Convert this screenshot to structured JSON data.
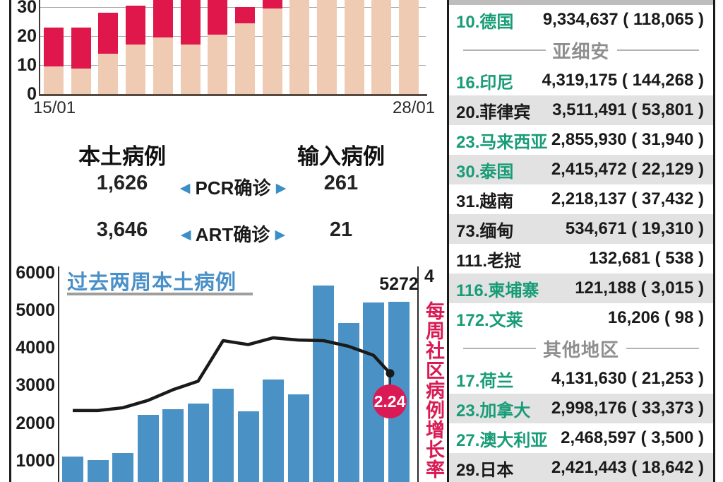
{
  "colors": {
    "daily_pink": "#f0cbb4",
    "daily_red": "#e0174a",
    "weekly_blue": "#4a92c6",
    "crimson": "#d91a55",
    "table_green": "#189c77",
    "shaded_row": "#e2e2e2"
  },
  "summary": {
    "local_title": "本土病例",
    "imported_title": "输入病例",
    "rows": [
      {
        "local": "1,626",
        "left_arrow": "◀",
        "label": "PCR确诊",
        "right_arrow": "▶",
        "imported": "261"
      },
      {
        "local": "3,646",
        "left_arrow": "◀",
        "label": "ART确诊",
        "right_arrow": "▶",
        "imported": "21"
      }
    ]
  },
  "chart_data": [
    {
      "type": "bar",
      "stacked": true,
      "note": "Daily cases stacked bars (top of chart cropped in source image; values above ~32 are cut off, clipped segments stored as 34)",
      "n_bars": 14,
      "x_first_label": "15/01",
      "x_last_label": "28/01",
      "yticks": [
        0,
        10,
        20,
        30
      ],
      "ylim_visible": [
        0,
        32.4
      ],
      "series": [
        {
          "name": "pink-segment",
          "color": "#f0cbb4",
          "top_values": [
            9.5,
            8.8,
            14,
            17,
            19.5,
            17,
            20.5,
            24.5,
            29.5,
            34,
            34,
            34,
            34,
            34
          ]
        },
        {
          "name": "red-segment",
          "color": "#e0174a",
          "top_values": [
            23,
            23,
            28,
            30.5,
            34,
            34,
            34,
            30,
            34,
            34,
            34,
            34,
            34,
            34
          ]
        }
      ]
    },
    {
      "type": "bar+line",
      "title": "过去两周本土病例",
      "n_bars": 14,
      "bar_color": "#4a92c6",
      "bar_values": [
        1150,
        1050,
        1250,
        2250,
        2400,
        2550,
        2950,
        2350,
        3200,
        2800,
        5700,
        4700,
        5250,
        5272
      ],
      "bar_label_last": "5272",
      "left_yticks": [
        1000,
        2000,
        3000,
        4000,
        5000,
        6000
      ],
      "left_ylim": [
        0,
        6000
      ],
      "right_axis_top_tick": "4",
      "right_ylim": [
        0,
        4
      ],
      "right_axis_label": "每周社区病例增长率",
      "line_color": "#1a1a1a",
      "line_values": [
        1.58,
        1.58,
        1.63,
        1.76,
        1.95,
        2.1,
        2.82,
        2.75,
        2.87,
        2.83,
        2.82,
        2.72,
        2.56,
        2.24
      ],
      "line_end_label": "2.24"
    }
  ],
  "ranking": {
    "items": [
      {
        "type": "country",
        "name": "10.德国",
        "value": "9,334,637 ( 118,065 )",
        "green": true,
        "shaded": false
      },
      {
        "type": "section",
        "label": "亚细安"
      },
      {
        "type": "country",
        "name": "16.印尼",
        "value": "4,319,175 ( 144,268 )",
        "green": true,
        "shaded": false
      },
      {
        "type": "country",
        "name": "20.菲律宾",
        "value": "3,511,491 ( 53,801 )",
        "green": false,
        "shaded": true
      },
      {
        "type": "country",
        "name": "23.马来西亚",
        "value": "2,855,930 ( 31,940 )",
        "green": true,
        "shaded": false
      },
      {
        "type": "country",
        "name": "30.泰国",
        "value": "2,415,472 ( 22,129 )",
        "green": true,
        "shaded": true
      },
      {
        "type": "country",
        "name": "31.越南",
        "value": "2,218,137 ( 37,432 )",
        "green": false,
        "shaded": false
      },
      {
        "type": "country",
        "name": "73.缅甸",
        "value": "534,671 ( 19,310 )",
        "green": false,
        "shaded": true
      },
      {
        "type": "country",
        "name": "111.老挝",
        "value": "132,681 ( 538 )",
        "green": false,
        "shaded": false
      },
      {
        "type": "country",
        "name": "116.柬埔寨",
        "value": "121,188 ( 3,015 )",
        "green": true,
        "shaded": true
      },
      {
        "type": "country",
        "name": "172.文莱",
        "value": "16,206 ( 98 )",
        "green": true,
        "shaded": false
      },
      {
        "type": "section",
        "label": "其他地区"
      },
      {
        "type": "country",
        "name": "17.荷兰",
        "value": "4,131,630 ( 21,253 )",
        "green": true,
        "shaded": false
      },
      {
        "type": "country",
        "name": "23.加拿大",
        "value": "2,998,176 ( 33,373 )",
        "green": true,
        "shaded": true
      },
      {
        "type": "country",
        "name": "27.澳大利亚",
        "value": "2,468,597 ( 3,500 )",
        "green": true,
        "shaded": false
      },
      {
        "type": "country",
        "name": "29.日本",
        "value": "2,421,443 ( 18,642 )",
        "green": false,
        "shaded": true
      }
    ]
  }
}
